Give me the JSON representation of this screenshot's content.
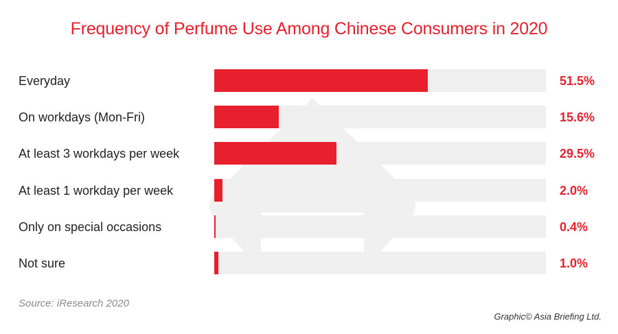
{
  "chart_data": {
    "type": "bar",
    "orientation": "horizontal",
    "title": "Frequency of Perfume Use Among Chinese Consumers in 2020",
    "categories": [
      "Everyday",
      "On workdays (Mon-Fri)",
      "At least 3 workdays per week",
      "At least 1 workday per week",
      "Only on special occasions",
      "Not sure"
    ],
    "values": [
      51.5,
      15.6,
      29.5,
      2.0,
      0.4,
      1.0
    ],
    "value_labels": [
      "51.5%",
      "15.6%",
      "29.5%",
      "2.0%",
      "0.4%",
      "1.0%"
    ],
    "xlim": [
      0,
      80
    ],
    "grid": false,
    "legend": "none",
    "bar_color": "#e8202e",
    "track_color": "#efefef"
  },
  "source": "Source: iResearch 2020",
  "credit": "Graphic© Asia Briefing Ltd."
}
